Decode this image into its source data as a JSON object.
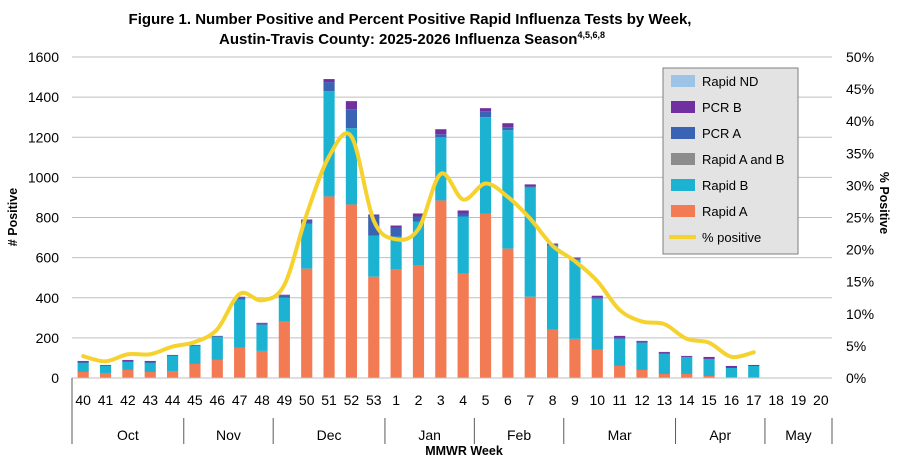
{
  "chart_data": {
    "type": "bar",
    "title_line1": "Figure 1. Number Positive and Percent Positive Rapid Influenza Tests by Week,",
    "title_line2": "Austin-Travis County:  2025-2026 Influenza Season",
    "title_superscript": "4,5,6,8",
    "xlabel": "MMWR Week",
    "ylabel": "# Positive",
    "y2label": "% Positive",
    "ylim": [
      0,
      1600
    ],
    "yticks": [
      0,
      200,
      400,
      600,
      800,
      1000,
      1200,
      1400,
      1600
    ],
    "y2lim": [
      0,
      50
    ],
    "y2ticks": [
      "0%",
      "5%",
      "10%",
      "15%",
      "20%",
      "25%",
      "30%",
      "35%",
      "40%",
      "45%",
      "50%"
    ],
    "grid": "horizontal",
    "legend_position": "top-right",
    "categories": [
      "40",
      "41",
      "42",
      "43",
      "44",
      "45",
      "46",
      "47",
      "48",
      "49",
      "50",
      "51",
      "52",
      "53",
      "1",
      "2",
      "3",
      "4",
      "5",
      "6",
      "7",
      "8",
      "9",
      "10",
      "11",
      "12",
      "13",
      "14",
      "15",
      "16",
      "17",
      "18",
      "19",
      "20"
    ],
    "months": [
      {
        "label": "Oct",
        "start": 0,
        "end": 5
      },
      {
        "label": "Nov",
        "start": 5,
        "end": 9
      },
      {
        "label": "Dec",
        "start": 9,
        "end": 14
      },
      {
        "label": "Jan",
        "start": 14,
        "end": 18
      },
      {
        "label": "Feb",
        "start": 18,
        "end": 22
      },
      {
        "label": "Mar",
        "start": 22,
        "end": 27
      },
      {
        "label": "Apr",
        "start": 27,
        "end": 31
      },
      {
        "label": "May",
        "start": 31,
        "end": 34
      }
    ],
    "series": [
      {
        "name": "Rapid A",
        "color": "#f37b54",
        "values": [
          30,
          25,
          40,
          30,
          35,
          70,
          90,
          150,
          135,
          280,
          545,
          905,
          865,
          505,
          540,
          560,
          885,
          520,
          820,
          645,
          405,
          240,
          195,
          140,
          60,
          40,
          20,
          20,
          10,
          5,
          5,
          null,
          null,
          null
        ]
      },
      {
        "name": "Rapid B",
        "color": "#1cb3d3",
        "values": [
          45,
          35,
          40,
          45,
          75,
          90,
          115,
          240,
          130,
          120,
          225,
          525,
          380,
          205,
          165,
          220,
          315,
          285,
          480,
          590,
          545,
          420,
          395,
          255,
          135,
          135,
          100,
          85,
          85,
          45,
          55,
          null,
          null,
          null
        ]
      },
      {
        "name": "Rapid A and B",
        "color": "#8c8c8c",
        "values": [
          0,
          0,
          0,
          0,
          0,
          0,
          0,
          0,
          0,
          0,
          0,
          0,
          0,
          0,
          0,
          0,
          0,
          0,
          0,
          0,
          0,
          0,
          0,
          0,
          0,
          0,
          0,
          0,
          0,
          0,
          0,
          null,
          null,
          null
        ]
      },
      {
        "name": "PCR A",
        "color": "#3b63b3",
        "values": [
          5,
          5,
          5,
          5,
          5,
          5,
          5,
          10,
          5,
          10,
          15,
          45,
          95,
          100,
          45,
          25,
          15,
          15,
          30,
          15,
          5,
          5,
          5,
          5,
          5,
          5,
          5,
          0,
          0,
          0,
          0,
          null,
          null,
          null
        ]
      },
      {
        "name": "PCR B",
        "color": "#7030a0",
        "values": [
          5,
          0,
          5,
          5,
          0,
          0,
          0,
          5,
          5,
          5,
          5,
          15,
          40,
          5,
          10,
          15,
          25,
          15,
          15,
          20,
          10,
          5,
          5,
          10,
          10,
          5,
          5,
          5,
          10,
          10,
          5,
          null,
          null,
          null
        ]
      },
      {
        "name": "Rapid ND",
        "color": "#9dc3e6",
        "values": [
          0,
          0,
          0,
          0,
          0,
          0,
          0,
          0,
          0,
          0,
          0,
          0,
          0,
          0,
          0,
          0,
          0,
          0,
          0,
          0,
          0,
          0,
          0,
          0,
          0,
          0,
          0,
          0,
          0,
          0,
          0,
          null,
          null,
          null
        ]
      }
    ],
    "line_series": {
      "name": "% positive",
      "color": "#f5d22e",
      "axis": "right",
      "values": [
        3.4,
        2.6,
        3.7,
        3.7,
        4.9,
        5.6,
        7.6,
        13.1,
        12.1,
        14.5,
        25.5,
        34.5,
        37.6,
        24.5,
        21.6,
        23.2,
        31.8,
        27.8,
        30.3,
        28.2,
        24.8,
        20.6,
        18.2,
        15.1,
        10.6,
        8.8,
        8.4,
        6.1,
        5.5,
        3.3,
        4.0,
        null,
        null,
        null
      ]
    }
  }
}
